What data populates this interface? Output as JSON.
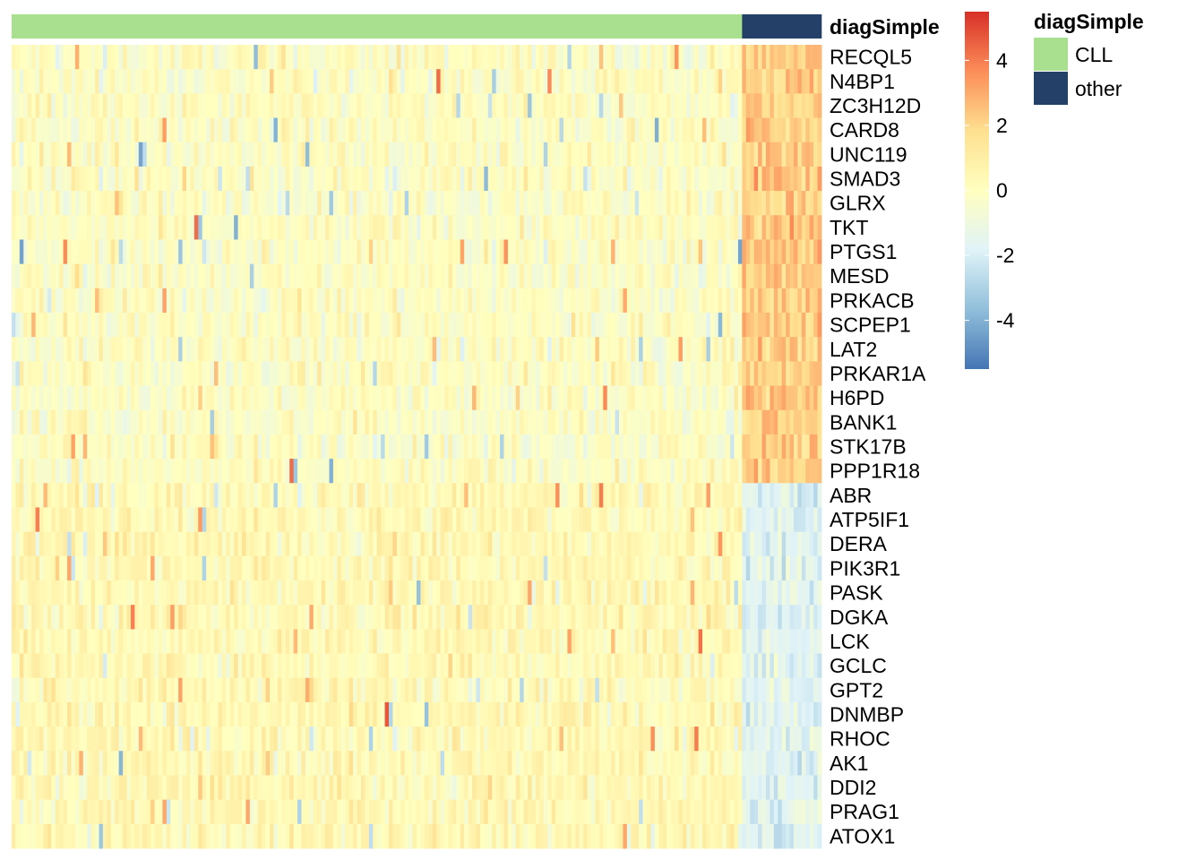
{
  "chart_data": {
    "type": "heatmap",
    "annotation": {
      "title": "diagSimple",
      "groups": [
        {
          "name": "CLL",
          "color": "#A8E08F",
          "count": 184
        },
        {
          "name": "other",
          "color": "#243F68",
          "count": 20
        }
      ]
    },
    "rows": [
      "RECQL5",
      "N4BP1",
      "ZC3H12D",
      "CARD8",
      "UNC119",
      "SMAD3",
      "GLRX",
      "TKT",
      "PTGS1",
      "MESD",
      "PRKACB",
      "SCPEP1",
      "LAT2",
      "PRKAR1A",
      "H6PD",
      "BANK1",
      "STK17B",
      "PPP1R18",
      "ABR",
      "ATP5IF1",
      "DERA",
      "PIK3R1",
      "PASK",
      "DGKA",
      "LCK",
      "GCLC",
      "GPT2",
      "DNMBP",
      "RHOC",
      "AK1",
      "DDI2",
      "PRAG1",
      "ATOX1"
    ],
    "rows_up_in_other": 18,
    "color_scale": {
      "colors": [
        "#4575B4",
        "#91BFDB",
        "#E0F3F8",
        "#FFFFBF",
        "#FEE090",
        "#FC8D59",
        "#D73027"
      ],
      "min": -5.5,
      "max": 5.5,
      "ticks": [
        4,
        2,
        0,
        -2,
        -4
      ]
    },
    "legend_position": "right"
  }
}
